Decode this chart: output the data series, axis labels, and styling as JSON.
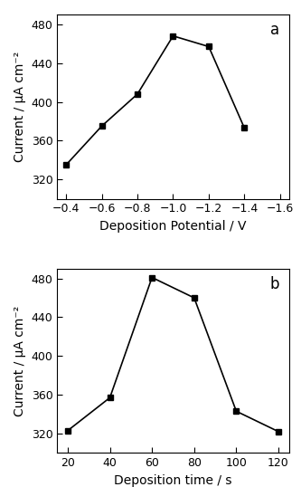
{
  "panel_a": {
    "x": [
      -0.4,
      -0.6,
      -0.8,
      -1.0,
      -1.2,
      -1.4
    ],
    "y": [
      335,
      375,
      408,
      468,
      457,
      373
    ],
    "xlabel": "Deposition Potential / V",
    "ylabel": "Current / μA cm⁻²",
    "xlim_left": -0.35,
    "xlim_right": -1.65,
    "xticks": [
      -0.4,
      -0.6,
      -0.8,
      -1.0,
      -1.2,
      -1.4,
      -1.6
    ],
    "ylim": [
      300,
      490
    ],
    "yticks": [
      320,
      360,
      400,
      440,
      480
    ],
    "label": "a"
  },
  "panel_b": {
    "x": [
      20,
      40,
      60,
      80,
      100,
      120
    ],
    "y": [
      323,
      357,
      481,
      460,
      343,
      322
    ],
    "xlabel": "Deposition time / s",
    "ylabel": "Current / μA cm⁻²",
    "xlim_left": 15,
    "xlim_right": 125,
    "xticks": [
      20,
      40,
      60,
      80,
      100,
      120
    ],
    "ylim": [
      300,
      490
    ],
    "yticks": [
      320,
      360,
      400,
      440,
      480
    ],
    "label": "b"
  },
  "marker": "s",
  "markersize": 4.5,
  "linewidth": 1.2,
  "color": "black",
  "background_color": "#ffffff",
  "tick_fontsize": 9,
  "label_fontsize": 10,
  "panel_label_fontsize": 12
}
